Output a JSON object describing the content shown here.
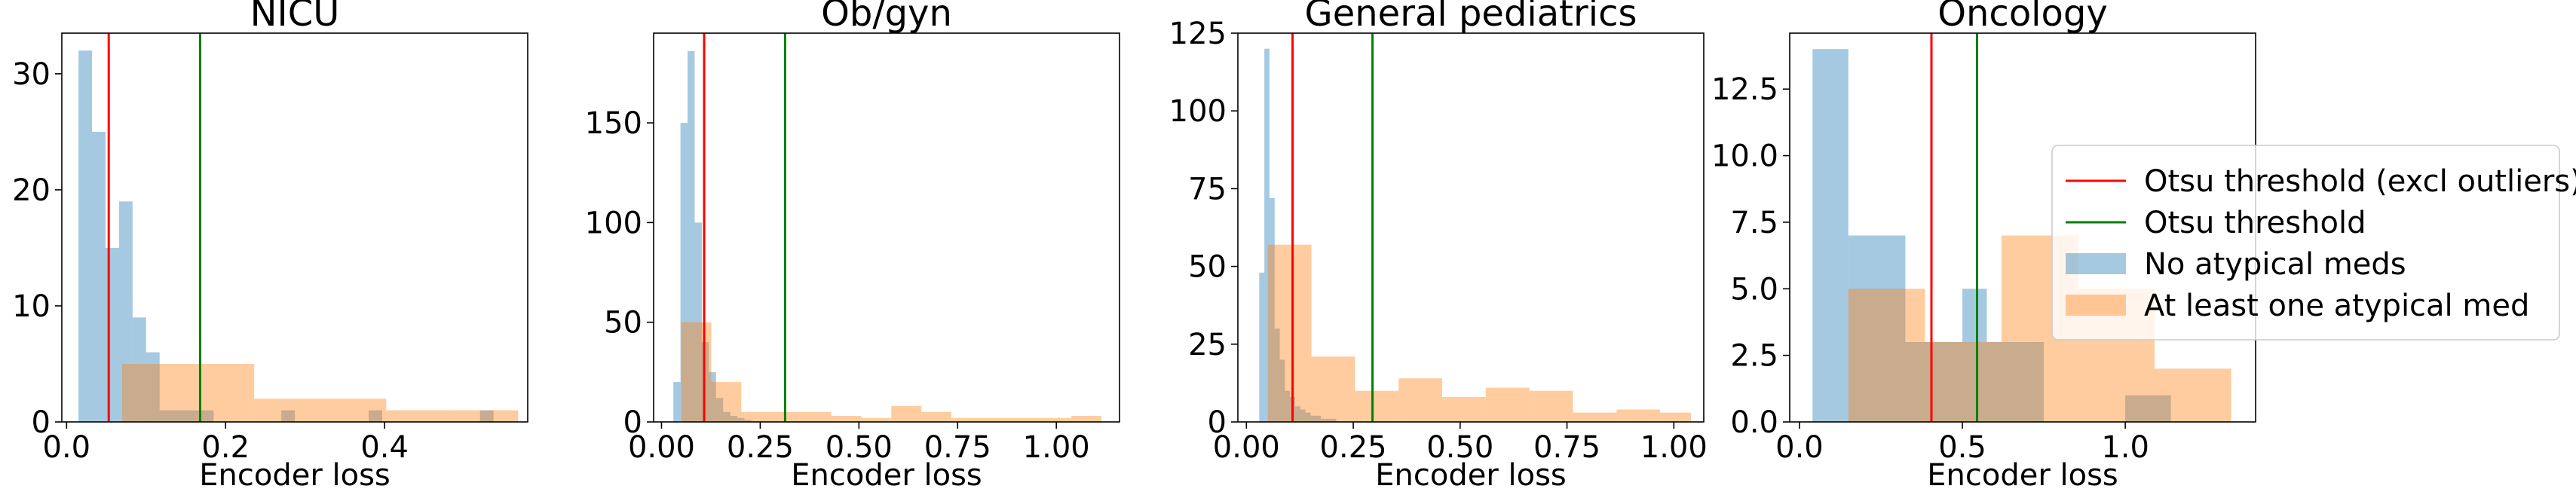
{
  "colors": {
    "no_atypical": "#1f77b4",
    "atypical": "#ff7f0e",
    "otsu_excl": "#ff0000",
    "otsu": "#008000",
    "bar_alpha": 0.4
  },
  "legend": {
    "placement": "right of last panel, upper-middle",
    "entries": [
      {
        "label": "Otsu threshold (excl outliers)",
        "kind": "line",
        "color": "#ff0000"
      },
      {
        "label": "Otsu threshold",
        "kind": "line",
        "color": "#008000"
      },
      {
        "label": "No atypical meds",
        "kind": "patch",
        "color": "#1f77b4"
      },
      {
        "label": "At least one atypical med",
        "kind": "patch",
        "color": "#ff7f0e"
      }
    ]
  },
  "chart_data": [
    {
      "type": "bar",
      "title": "NICU",
      "xlabel": "Encoder loss",
      "ylabel": "",
      "xlim": [
        -0.006,
        0.58
      ],
      "ylim": [
        0,
        33.5
      ],
      "xticks": [
        0.0,
        0.2,
        0.4
      ],
      "xtick_labels": [
        "0.0",
        "0.2",
        "0.4"
      ],
      "yticks": [
        0,
        10,
        20,
        30
      ],
      "ytick_labels": [
        "0",
        "10",
        "20",
        "30"
      ],
      "thresholds": {
        "otsu_excl_outliers": 0.053,
        "otsu": 0.168
      },
      "series": [
        {
          "name": "No atypical meds",
          "bins": [
            [
              0.015,
              0.032,
              32
            ],
            [
              0.032,
              0.049,
              25
            ],
            [
              0.049,
              0.066,
              15
            ],
            [
              0.066,
              0.083,
              19
            ],
            [
              0.083,
              0.1,
              9
            ],
            [
              0.1,
              0.117,
              6
            ],
            [
              0.117,
              0.134,
              1
            ],
            [
              0.134,
              0.151,
              1
            ],
            [
              0.151,
              0.168,
              1
            ],
            [
              0.168,
              0.185,
              1
            ],
            [
              0.27,
              0.287,
              1
            ],
            [
              0.38,
              0.397,
              1
            ],
            [
              0.52,
              0.537,
              1
            ]
          ]
        },
        {
          "name": "At least one atypical med",
          "bins": [
            [
              0.07,
              0.153,
              5
            ],
            [
              0.153,
              0.236,
              5
            ],
            [
              0.236,
              0.319,
              2
            ],
            [
              0.319,
              0.402,
              2
            ],
            [
              0.402,
              0.485,
              1
            ],
            [
              0.485,
              0.568,
              1
            ]
          ]
        }
      ]
    },
    {
      "type": "bar",
      "title": "Ob/gyn",
      "xlabel": "Encoder loss",
      "ylabel": "",
      "xlim": [
        -0.02,
        1.16
      ],
      "ylim": [
        0,
        195
      ],
      "xticks": [
        0.0,
        0.25,
        0.5,
        0.75,
        1.0
      ],
      "xtick_labels": [
        "0.00",
        "0.25",
        "0.50",
        "0.75",
        "1.00"
      ],
      "yticks": [
        0,
        50,
        100,
        150
      ],
      "ytick_labels": [
        "0",
        "50",
        "100",
        "150"
      ],
      "thresholds": {
        "otsu_excl_outliers": 0.108,
        "otsu": 0.313
      },
      "series": [
        {
          "name": "No atypical meds",
          "bins": [
            [
              0.03,
              0.048,
              20
            ],
            [
              0.048,
              0.066,
              150
            ],
            [
              0.066,
              0.084,
              186
            ],
            [
              0.084,
              0.102,
              100
            ],
            [
              0.102,
              0.12,
              40
            ],
            [
              0.12,
              0.138,
              25
            ],
            [
              0.138,
              0.156,
              12
            ],
            [
              0.156,
              0.174,
              5
            ],
            [
              0.174,
              0.192,
              3
            ],
            [
              0.192,
              0.21,
              2
            ],
            [
              0.21,
              0.228,
              1
            ]
          ]
        },
        {
          "name": "At least one atypical med",
          "bins": [
            [
              0.05,
              0.126,
              50
            ],
            [
              0.126,
              0.202,
              20
            ],
            [
              0.202,
              0.278,
              5
            ],
            [
              0.278,
              0.354,
              5
            ],
            [
              0.354,
              0.43,
              5
            ],
            [
              0.43,
              0.506,
              3
            ],
            [
              0.506,
              0.582,
              2
            ],
            [
              0.582,
              0.658,
              8
            ],
            [
              0.658,
              0.734,
              5
            ],
            [
              0.734,
              0.81,
              2
            ],
            [
              0.81,
              0.886,
              2
            ],
            [
              0.886,
              0.962,
              2
            ],
            [
              0.962,
              1.038,
              2
            ],
            [
              1.038,
              1.114,
              3
            ]
          ]
        }
      ]
    },
    {
      "type": "bar",
      "title": "General pediatrics",
      "xlabel": "Encoder loss",
      "ylabel": "",
      "xlim": [
        -0.02,
        1.07
      ],
      "ylim": [
        0,
        125
      ],
      "xticks": [
        0.0,
        0.25,
        0.5,
        0.75,
        1.0
      ],
      "xtick_labels": [
        "0.00",
        "0.25",
        "0.50",
        "0.75",
        "1.00"
      ],
      "yticks": [
        0,
        25,
        50,
        75,
        100,
        125
      ],
      "ytick_labels": [
        "0",
        "25",
        "50",
        "75",
        "100",
        "125"
      ],
      "thresholds": {
        "otsu_excl_outliers": 0.108,
        "otsu": 0.295
      },
      "series": [
        {
          "name": "No atypical meds",
          "bins": [
            [
              0.03,
              0.042,
              48
            ],
            [
              0.042,
              0.054,
              120
            ],
            [
              0.054,
              0.066,
              72
            ],
            [
              0.066,
              0.078,
              30
            ],
            [
              0.078,
              0.09,
              20
            ],
            [
              0.09,
              0.102,
              10
            ],
            [
              0.102,
              0.114,
              8
            ],
            [
              0.114,
              0.126,
              5
            ],
            [
              0.126,
              0.138,
              4
            ],
            [
              0.138,
              0.15,
              3
            ],
            [
              0.15,
              0.162,
              2
            ],
            [
              0.162,
              0.174,
              2
            ],
            [
              0.174,
              0.186,
              1
            ],
            [
              0.186,
              0.198,
              1
            ],
            [
              0.198,
              0.21,
              1
            ]
          ]
        },
        {
          "name": "At least one atypical med",
          "bins": [
            [
              0.05,
              0.152,
              57
            ],
            [
              0.152,
              0.254,
              21
            ],
            [
              0.254,
              0.356,
              10
            ],
            [
              0.356,
              0.458,
              14
            ],
            [
              0.458,
              0.56,
              8
            ],
            [
              0.56,
              0.662,
              11
            ],
            [
              0.662,
              0.764,
              10
            ],
            [
              0.764,
              0.866,
              3
            ],
            [
              0.866,
              0.968,
              4
            ],
            [
              0.968,
              1.04,
              3
            ]
          ]
        }
      ]
    },
    {
      "type": "bar",
      "title": "Oncology",
      "xlabel": "Encoder loss",
      "ylabel": "",
      "xlim": [
        -0.03,
        1.4
      ],
      "ylim": [
        0,
        14.6
      ],
      "xticks": [
        0.0,
        0.5,
        1.0
      ],
      "xtick_labels": [
        "0.0",
        "0.5",
        "1.0"
      ],
      "yticks": [
        0,
        2.5,
        5,
        7.5,
        10,
        12.5
      ],
      "ytick_labels": [
        "0.0",
        "2.5",
        "5.0",
        "7.5",
        "10.0",
        "12.5"
      ],
      "thresholds": {
        "otsu_excl_outliers": 0.405,
        "otsu": 0.545
      },
      "series": [
        {
          "name": "No atypical meds",
          "bins": [
            [
              0.04,
              0.15,
              14
            ],
            [
              0.15,
              0.325,
              7
            ],
            [
              0.325,
              0.5,
              3
            ],
            [
              0.5,
              0.575,
              5
            ],
            [
              0.575,
              0.75,
              3
            ],
            [
              0.75,
              1.0,
              0
            ],
            [
              1.0,
              1.14,
              1
            ]
          ]
        },
        {
          "name": "At least one atypical med",
          "bins": [
            [
              0.15,
              0.385,
              5
            ],
            [
              0.385,
              0.62,
              3
            ],
            [
              0.62,
              0.855,
              7
            ],
            [
              0.855,
              1.09,
              5
            ],
            [
              1.09,
              1.325,
              2
            ]
          ]
        }
      ]
    }
  ]
}
